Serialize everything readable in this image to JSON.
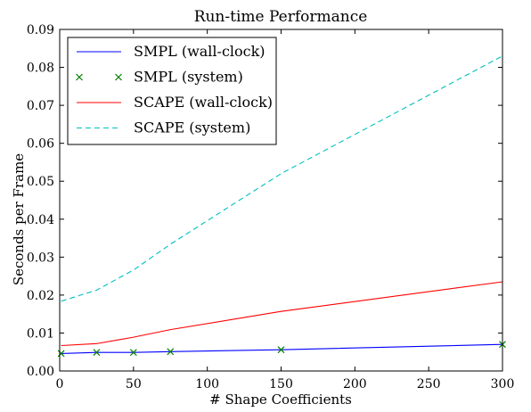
{
  "chart_data": {
    "type": "line",
    "title": "Run-time Performance",
    "xlabel": "# Shape Coefficients",
    "ylabel": "Seconds per Frame",
    "xlim": [
      0,
      300
    ],
    "ylim": [
      0,
      0.09
    ],
    "xticks": [
      0,
      50,
      100,
      150,
      200,
      250,
      300
    ],
    "xtick_labels": [
      "0",
      "50",
      "100",
      "150",
      "200",
      "250",
      "300"
    ],
    "yticks": [
      0,
      0.01,
      0.02,
      0.03,
      0.04,
      0.05,
      0.06,
      0.07,
      0.08,
      0.09
    ],
    "ytick_labels": [
      "0.00",
      "0.01",
      "0.02",
      "0.03",
      "0.04",
      "0.05",
      "0.06",
      "0.07",
      "0.08",
      "0.09"
    ],
    "grid": false,
    "legend_position": "top-left",
    "series": [
      {
        "name": "SMPL (wall-clock)",
        "style": "solid-line",
        "color": "#0000ff",
        "x": [
          1,
          25,
          50,
          75,
          150,
          300
        ],
        "y": [
          0.0046,
          0.0049,
          0.0049,
          0.0051,
          0.0056,
          0.007
        ]
      },
      {
        "name": "SMPL (system)",
        "style": "x-marker",
        "color": "#008000",
        "x": [
          1,
          25,
          50,
          75,
          150,
          300
        ],
        "y": [
          0.0046,
          0.0049,
          0.0049,
          0.0051,
          0.0056,
          0.007
        ]
      },
      {
        "name": "SCAPE (wall-clock)",
        "style": "solid-line",
        "color": "#ff0000",
        "x": [
          1,
          25,
          50,
          75,
          150,
          300
        ],
        "y": [
          0.0067,
          0.0072,
          0.0089,
          0.0109,
          0.0157,
          0.0235
        ]
      },
      {
        "name": "SCAPE (system)",
        "style": "dashed-line",
        "color": "#00bfbf",
        "x": [
          1,
          25,
          50,
          75,
          150,
          300
        ],
        "y": [
          0.0184,
          0.0213,
          0.0266,
          0.0334,
          0.052,
          0.083
        ]
      }
    ]
  }
}
